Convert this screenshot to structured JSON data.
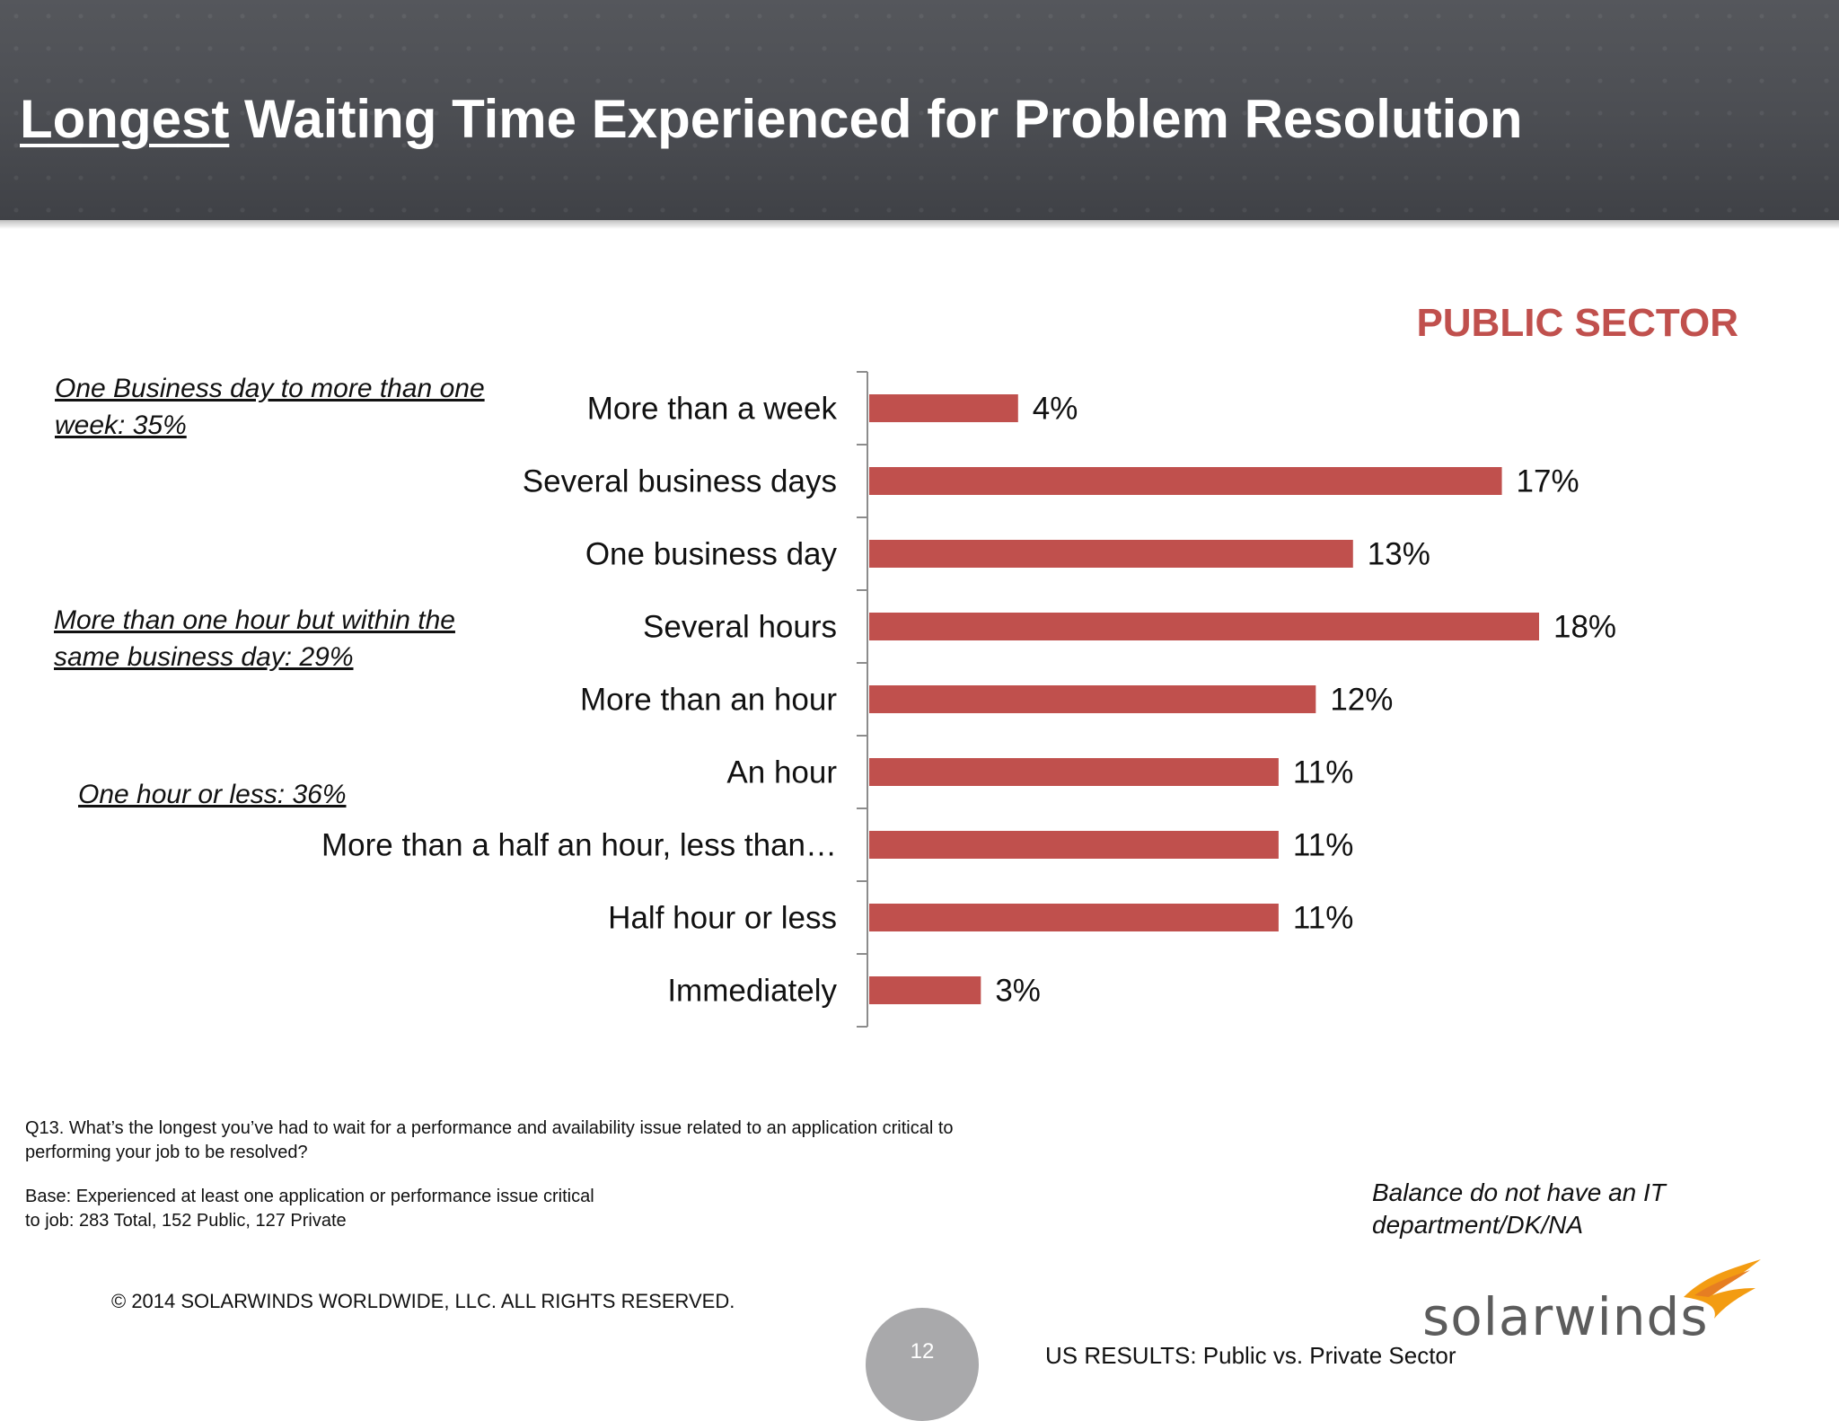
{
  "header": {
    "title_underlined": "Longest",
    "title_rest": " Waiting Time Experienced for Problem Resolution"
  },
  "sector_label": "PUBLIC SECTOR",
  "annotations": [
    "One Business day to more than one week:  35%",
    "More than one hour but within the same business day:  29%",
    "One hour or less:  36%"
  ],
  "chart_data": {
    "type": "bar",
    "orientation": "horizontal",
    "categories": [
      "More than a week",
      "Several business days",
      "One business day",
      "Several hours",
      "More than an hour",
      "An hour",
      "More than a half an hour, less than…",
      "Half hour or less",
      "Immediately"
    ],
    "values": [
      4,
      17,
      13,
      18,
      12,
      11,
      11,
      11,
      3
    ],
    "value_labels": [
      "4%",
      "17%",
      "13%",
      "18%",
      "12%",
      "11%",
      "11%",
      "11%",
      "3%"
    ],
    "unit": "%",
    "bar_color": "#c0504d",
    "xlim": [
      0,
      18
    ],
    "grid": false,
    "legend": "none"
  },
  "notes": {
    "question": "Q13. What’s the longest you’ve had to wait for a performance and availability issue related to an application critical to performing your job to be resolved?",
    "base": "Base:  Experienced at least one  application or performance issue critical to job:  283 Total, 152 Public, 127 Private",
    "balance": "Balance do not have an IT department/DK/NA"
  },
  "footer": {
    "copyright": "© 2014 SOLARWINDS WORLDWIDE, LLC.  ALL RIGHTS RESERVED.",
    "page_number": "12",
    "label": "US RESULTS:  Public vs. Private Sector"
  },
  "logo": {
    "text": "solarwinds",
    "icon": "solarwinds-flame-icon",
    "flame_color": "#f39c12"
  },
  "colors": {
    "header_bg": "#4b4d52",
    "accent": "#c0504d"
  }
}
